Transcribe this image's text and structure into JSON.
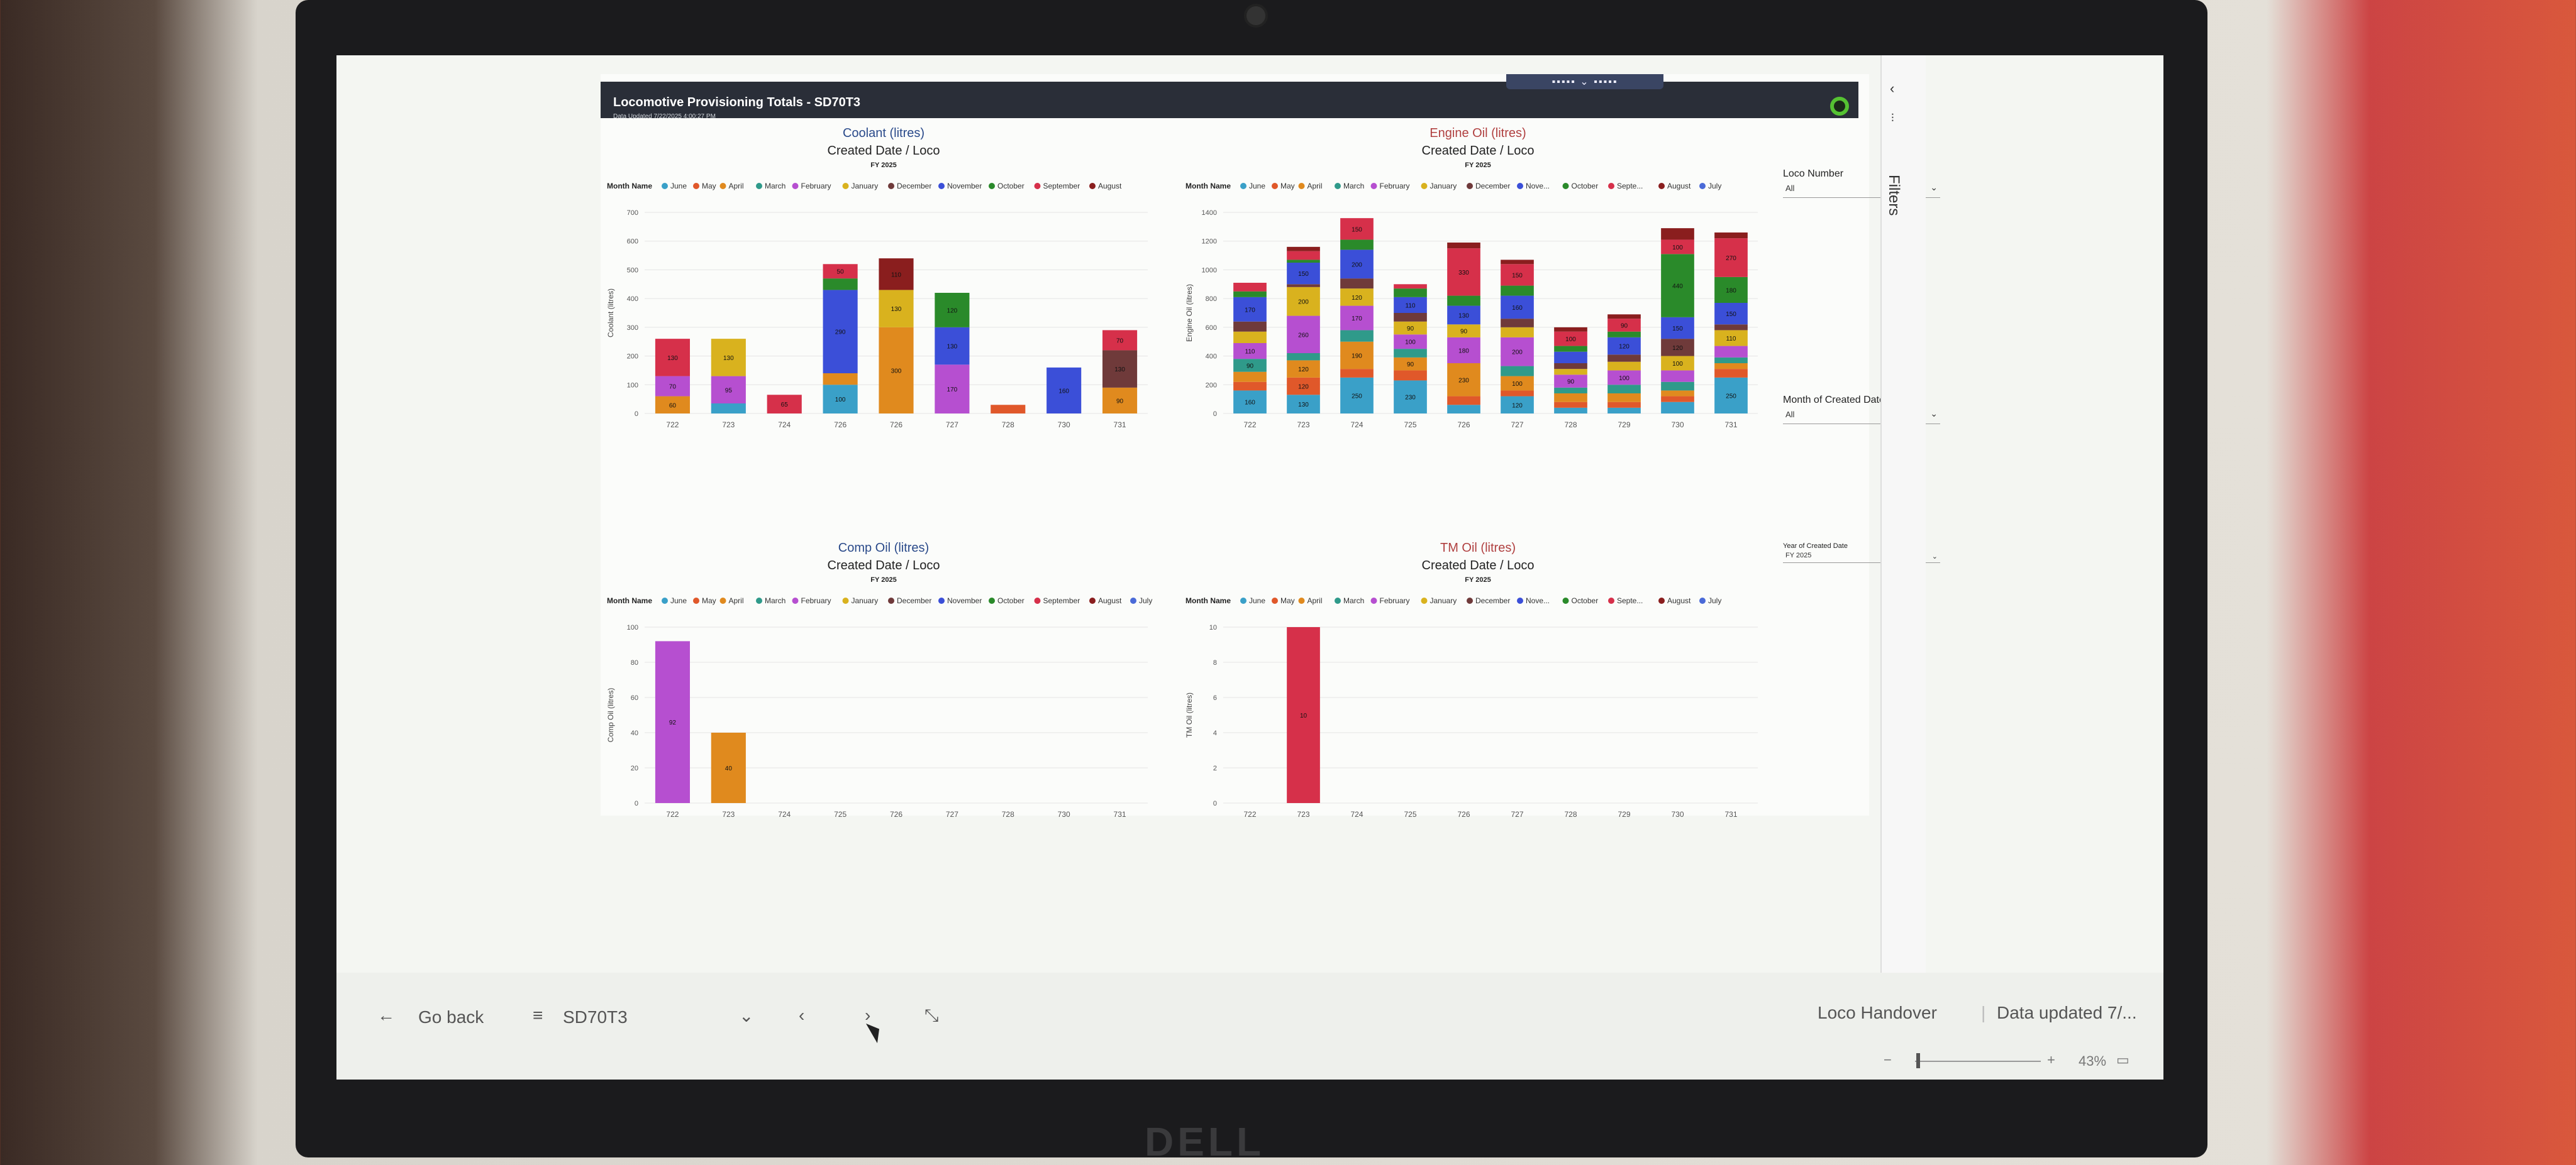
{
  "report": {
    "title": "Locomotive Provisioning Totals - SD70T3",
    "date_updated": "Data Updated 7/22/2025 4:00:27 PM"
  },
  "filters_pane": {
    "label": "Filters"
  },
  "slicers": {
    "loco_number": {
      "title": "Loco Number",
      "value": "All"
    },
    "month": {
      "title": "Month of Created Date",
      "value": "All"
    },
    "year": {
      "title": "Year of Created Date",
      "value": "FY 2025"
    }
  },
  "bottom_bar": {
    "go_back": "Go back",
    "page_name": "SD70T3",
    "report_name": "Loco Handover",
    "data_updated": "Data updated 7/...",
    "zoom": "43%"
  },
  "colors": {
    "June": "#3aa0c8",
    "May": "#e0582a",
    "April": "#e08a1e",
    "March": "#2f9a8a",
    "February": "#b64fd0",
    "January": "#d9b21e",
    "December": "#6f3a3a",
    "November": "#3b4fd8",
    "October": "#2a8a2a",
    "September": "#d6304a",
    "August": "#8a1e1e",
    "July": "#4a6ad8"
  },
  "chart_data": [
    {
      "type": "bar",
      "title": "Coolant (litres)",
      "subtitle": "Created Date / Loco",
      "filter_label": "FY 2025",
      "legend_title": "Month Name",
      "legend": [
        "June",
        "May",
        "April",
        "March",
        "February",
        "January",
        "December",
        "November",
        "October",
        "September",
        "August"
      ],
      "xlabel": "",
      "ylabel": "Coolant (litres)",
      "ylim": [
        0,
        700
      ],
      "yticks": [
        0,
        100,
        200,
        300,
        400,
        500,
        600,
        700
      ],
      "categories": [
        "722",
        "723",
        "724",
        "726",
        "726",
        "727",
        "728",
        "730",
        "731"
      ],
      "series": [
        {
          "name": "June",
          "values": [
            0,
            35,
            0,
            100,
            0,
            0,
            0,
            0,
            0
          ]
        },
        {
          "name": "May",
          "values": [
            0,
            0,
            0,
            0,
            0,
            0,
            30,
            0,
            0
          ]
        },
        {
          "name": "April",
          "values": [
            60,
            0,
            0,
            40,
            300,
            0,
            0,
            0,
            90
          ]
        },
        {
          "name": "March",
          "values": [
            0,
            0,
            0,
            0,
            0,
            0,
            0,
            0,
            0
          ]
        },
        {
          "name": "February",
          "values": [
            70,
            95,
            0,
            0,
            0,
            170,
            0,
            0,
            0
          ]
        },
        {
          "name": "January",
          "values": [
            0,
            130,
            0,
            0,
            130,
            0,
            0,
            0,
            0
          ]
        },
        {
          "name": "December",
          "values": [
            0,
            0,
            0,
            0,
            0,
            0,
            0,
            0,
            130
          ]
        },
        {
          "name": "November",
          "values": [
            0,
            0,
            0,
            290,
            0,
            130,
            0,
            160,
            0
          ]
        },
        {
          "name": "October",
          "values": [
            0,
            0,
            0,
            40,
            0,
            120,
            0,
            0,
            0
          ]
        },
        {
          "name": "September",
          "values": [
            130,
            0,
            65,
            50,
            0,
            0,
            0,
            0,
            70
          ]
        },
        {
          "name": "August",
          "values": [
            0,
            0,
            0,
            0,
            110,
            0,
            0,
            0,
            0
          ]
        }
      ]
    },
    {
      "type": "bar",
      "title": "Engine Oil (litres)",
      "subtitle": "Created Date / Loco",
      "filter_label": "FY 2025",
      "legend_title": "Month Name",
      "legend": [
        "June",
        "May",
        "April",
        "March",
        "February",
        "January",
        "December",
        "Nove...",
        "October",
        "Septe...",
        "August",
        "July"
      ],
      "xlabel": "",
      "ylabel": "Engine Oil (litres)",
      "ylim": [
        0,
        1400
      ],
      "yticks": [
        0,
        200,
        400,
        600,
        800,
        1000,
        1200,
        1400
      ],
      "categories": [
        "722",
        "723",
        "724",
        "725",
        "726",
        "727",
        "728",
        "729",
        "730",
        "731"
      ],
      "series": [
        {
          "name": "June",
          "values": [
            160,
            130,
            250,
            230,
            60,
            120,
            40,
            40,
            80,
            250
          ]
        },
        {
          "name": "May",
          "values": [
            60,
            120,
            60,
            70,
            60,
            40,
            40,
            40,
            40,
            60
          ]
        },
        {
          "name": "April",
          "values": [
            70,
            120,
            190,
            90,
            230,
            100,
            60,
            60,
            40,
            40
          ]
        },
        {
          "name": "March",
          "values": [
            90,
            50,
            80,
            60,
            0,
            70,
            40,
            60,
            60,
            40
          ]
        },
        {
          "name": "February",
          "values": [
            110,
            260,
            170,
            100,
            180,
            200,
            90,
            100,
            80,
            80
          ]
        },
        {
          "name": "January",
          "values": [
            80,
            200,
            120,
            90,
            90,
            70,
            40,
            60,
            100,
            110
          ]
        },
        {
          "name": "December",
          "values": [
            70,
            20,
            70,
            60,
            0,
            60,
            40,
            50,
            120,
            40
          ]
        },
        {
          "name": "November",
          "values": [
            170,
            150,
            200,
            110,
            130,
            160,
            80,
            120,
            150,
            150
          ]
        },
        {
          "name": "October",
          "values": [
            40,
            20,
            70,
            60,
            70,
            70,
            40,
            40,
            440,
            180
          ]
        },
        {
          "name": "September",
          "values": [
            60,
            60,
            150,
            30,
            330,
            150,
            100,
            90,
            100,
            270
          ]
        },
        {
          "name": "August",
          "values": [
            0,
            30,
            0,
            0,
            40,
            30,
            30,
            30,
            80,
            40
          ]
        },
        {
          "name": "July",
          "values": [
            0,
            0,
            0,
            0,
            0,
            0,
            0,
            0,
            0,
            0
          ]
        }
      ]
    },
    {
      "type": "bar",
      "title": "Comp Oil (litres)",
      "subtitle": "Created Date / Loco",
      "filter_label": "FY 2025",
      "legend_title": "Month Name",
      "legend": [
        "June",
        "May",
        "April",
        "March",
        "February",
        "January",
        "December",
        "November",
        "October",
        "September",
        "August",
        "July"
      ],
      "xlabel": "",
      "ylabel": "Comp Oil (litres)",
      "ylim": [
        0,
        100
      ],
      "yticks": [
        0,
        20,
        40,
        60,
        80,
        100
      ],
      "categories": [
        "722",
        "723",
        "724",
        "725",
        "726",
        "727",
        "728",
        "730",
        "731"
      ],
      "series": [
        {
          "name": "February",
          "values": [
            92,
            0,
            0,
            0,
            0,
            0,
            0,
            0,
            0
          ]
        },
        {
          "name": "April",
          "values": [
            0,
            40,
            0,
            0,
            0,
            0,
            0,
            0,
            0
          ]
        }
      ]
    },
    {
      "type": "bar",
      "title": "TM Oil (litres)",
      "subtitle": "Created Date / Loco",
      "filter_label": "FY 2025",
      "legend_title": "Month Name",
      "legend": [
        "June",
        "May",
        "April",
        "March",
        "February",
        "January",
        "December",
        "Nove...",
        "October",
        "Septe...",
        "August",
        "July"
      ],
      "xlabel": "",
      "ylabel": "TM Oil (litres)",
      "ylim": [
        0,
        10
      ],
      "yticks": [
        0,
        2,
        4,
        6,
        8,
        10
      ],
      "categories": [
        "722",
        "723",
        "724",
        "725",
        "726",
        "727",
        "728",
        "729",
        "730",
        "731"
      ],
      "series": [
        {
          "name": "September",
          "values": [
            0,
            10,
            0,
            0,
            0,
            0,
            0,
            0,
            0,
            0
          ]
        }
      ]
    }
  ]
}
